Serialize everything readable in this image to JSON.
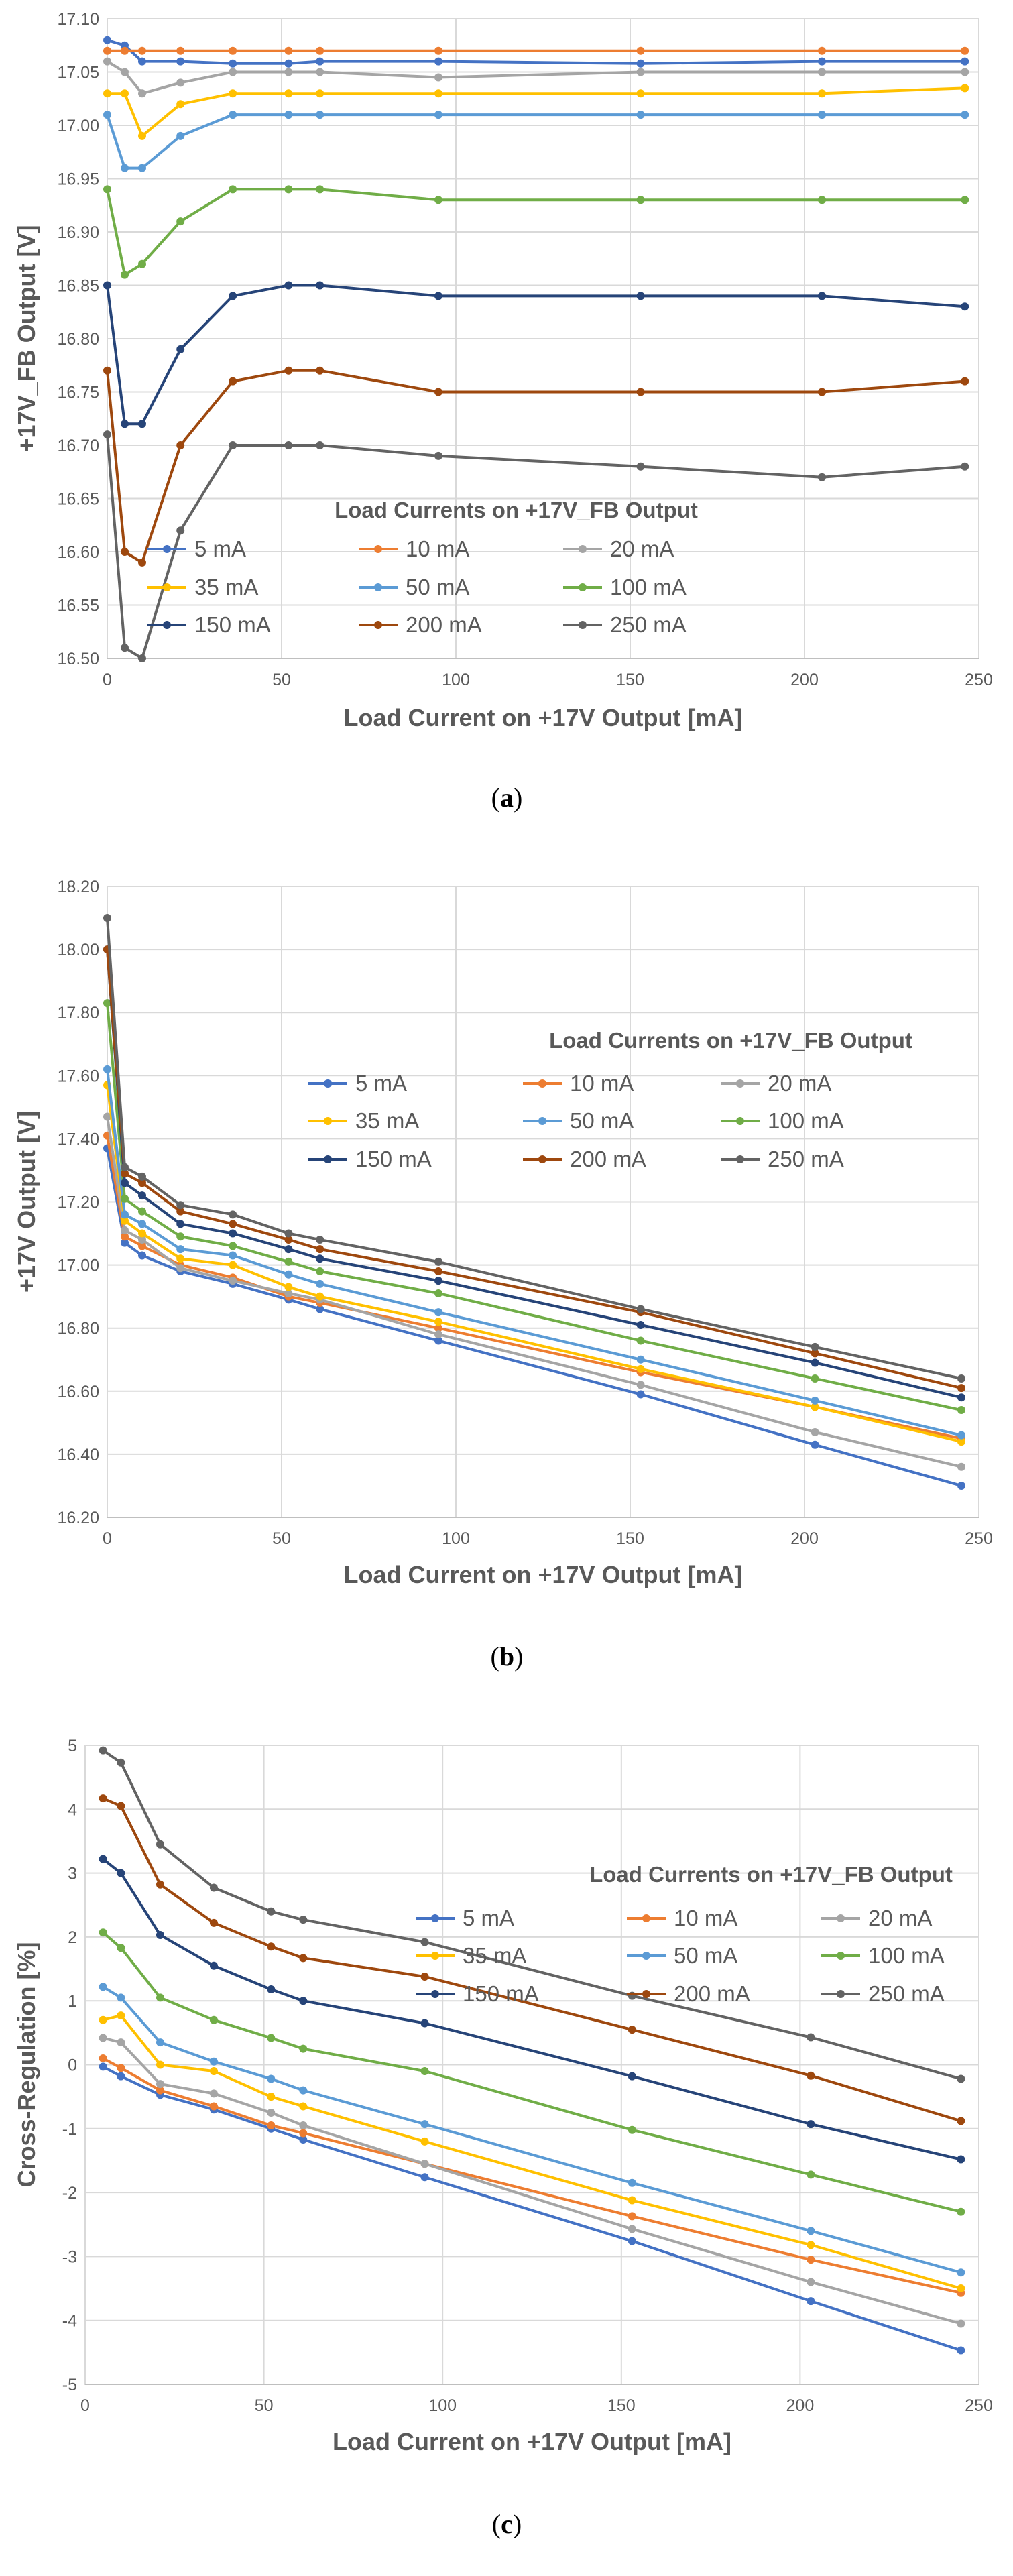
{
  "colors": [
    "#4472C4",
    "#ED7D31",
    "#A5A5A5",
    "#FFC000",
    "#5B9BD5",
    "#70AD47",
    "#264478",
    "#9E480E",
    "#636363"
  ],
  "chart_data": [
    {
      "type": "line",
      "caption": "a",
      "xlabel": "Load Current on +17V Output [mA]",
      "ylabel": "+17V_FB Output [V]",
      "xlim": [
        0,
        250
      ],
      "ylim": [
        16.5,
        17.1
      ],
      "xticks": [
        "0",
        "50",
        "100",
        "150",
        "200",
        "250"
      ],
      "yticks": [
        "16.50",
        "16.55",
        "16.60",
        "16.65",
        "16.70",
        "16.75",
        "16.80",
        "16.85",
        "16.90",
        "16.95",
        "17.00",
        "17.05",
        "17.10"
      ],
      "legend_title": "Load Currents on +17V_FB Output",
      "legend_position": "center",
      "x": [
        0,
        5,
        10,
        21,
        36,
        52,
        61,
        95,
        153,
        205,
        246
      ],
      "series": [
        {
          "name": "5 mA",
          "values": [
            17.08,
            17.075,
            17.06,
            17.06,
            17.058,
            17.058,
            17.06,
            17.06,
            17.058,
            17.06,
            17.06
          ]
        },
        {
          "name": "10 mA",
          "values": [
            17.07,
            17.07,
            17.07,
            17.07,
            17.07,
            17.07,
            17.07,
            17.07,
            17.07,
            17.07,
            17.07
          ]
        },
        {
          "name": "20 mA",
          "values": [
            17.06,
            17.05,
            17.03,
            17.04,
            17.05,
            17.05,
            17.05,
            17.045,
            17.05,
            17.05,
            17.05
          ]
        },
        {
          "name": "35 mA",
          "values": [
            17.03,
            17.03,
            16.99,
            17.02,
            17.03,
            17.03,
            17.03,
            17.03,
            17.03,
            17.03,
            17.035
          ]
        },
        {
          "name": "50 mA",
          "values": [
            17.01,
            16.96,
            16.96,
            16.99,
            17.01,
            17.01,
            17.01,
            17.01,
            17.01,
            17.01,
            17.01
          ]
        },
        {
          "name": "100 mA",
          "values": [
            16.94,
            16.86,
            16.87,
            16.91,
            16.94,
            16.94,
            16.94,
            16.93,
            16.93,
            16.93,
            16.93
          ]
        },
        {
          "name": "150 mA",
          "values": [
            16.85,
            16.72,
            16.72,
            16.79,
            16.84,
            16.85,
            16.85,
            16.84,
            16.84,
            16.84,
            16.83
          ]
        },
        {
          "name": "200 mA",
          "values": [
            16.77,
            16.6,
            16.59,
            16.7,
            16.76,
            16.77,
            16.77,
            16.75,
            16.75,
            16.75,
            16.76
          ]
        },
        {
          "name": "250 mA",
          "values": [
            16.71,
            16.51,
            16.5,
            16.62,
            16.7,
            16.7,
            16.7,
            16.69,
            16.68,
            16.67,
            16.68
          ]
        }
      ]
    },
    {
      "type": "line",
      "caption": "b",
      "xlabel": "Load Current on +17V Output [mA]",
      "ylabel": "+17V Output [V]",
      "xlim": [
        0,
        250
      ],
      "ylim": [
        16.2,
        18.2
      ],
      "xticks": [
        "0",
        "50",
        "100",
        "150",
        "200",
        "250"
      ],
      "yticks": [
        "16.20",
        "16.40",
        "16.60",
        "16.80",
        "17.00",
        "17.20",
        "17.40",
        "17.60",
        "17.80",
        "18.00",
        "18.20"
      ],
      "legend_title": "Load Currents on +17V_FB Output",
      "legend_position": "center-right",
      "x": [
        0,
        5,
        10,
        21,
        36,
        52,
        61,
        95,
        153,
        203,
        245
      ],
      "series": [
        {
          "name": "5 mA",
          "values": [
            17.37,
            17.07,
            17.03,
            16.98,
            16.94,
            16.89,
            16.86,
            16.76,
            16.59,
            16.43,
            16.3
          ]
        },
        {
          "name": "10 mA",
          "values": [
            17.41,
            17.09,
            17.06,
            17.0,
            16.96,
            16.9,
            16.88,
            16.8,
            16.66,
            16.55,
            16.45
          ]
        },
        {
          "name": "20 mA",
          "values": [
            17.47,
            17.11,
            17.08,
            16.99,
            16.95,
            16.91,
            16.89,
            16.78,
            16.62,
            16.47,
            16.36
          ]
        },
        {
          "name": "35 mA",
          "values": [
            17.57,
            17.14,
            17.1,
            17.02,
            17.0,
            16.93,
            16.9,
            16.82,
            16.67,
            16.55,
            16.44
          ]
        },
        {
          "name": "50 mA",
          "values": [
            17.62,
            17.16,
            17.13,
            17.05,
            17.03,
            16.97,
            16.94,
            16.85,
            16.7,
            16.57,
            16.46
          ]
        },
        {
          "name": "100 mA",
          "values": [
            17.83,
            17.21,
            17.17,
            17.09,
            17.06,
            17.01,
            16.98,
            16.91,
            16.76,
            16.64,
            16.54
          ]
        },
        {
          "name": "150 mA",
          "values": [
            18.0,
            17.26,
            17.22,
            17.13,
            17.1,
            17.05,
            17.02,
            16.95,
            16.81,
            16.69,
            16.58
          ]
        },
        {
          "name": "200 mA",
          "values": [
            18.0,
            17.29,
            17.26,
            17.17,
            17.13,
            17.08,
            17.05,
            16.98,
            16.85,
            16.72,
            16.61
          ]
        },
        {
          "name": "250 mA",
          "values": [
            18.1,
            17.31,
            17.28,
            17.19,
            17.16,
            17.1,
            17.08,
            17.01,
            16.86,
            16.74,
            16.64
          ]
        }
      ]
    },
    {
      "type": "line",
      "caption": "c",
      "xlabel": "Load Current on +17V Output [mA]",
      "ylabel": "Cross-Regulation [%]",
      "xlim": [
        0,
        250
      ],
      "ylim": [
        -5,
        5
      ],
      "xticks": [
        "0",
        "50",
        "100",
        "150",
        "200",
        "250"
      ],
      "yticks": [
        "-5",
        "-4",
        "-3",
        "-2",
        "-1",
        "0",
        "1",
        "2",
        "3",
        "4",
        "5"
      ],
      "legend_title": "Load Currents on +17V_FB Output",
      "legend_position": "top-right",
      "x": [
        5,
        10,
        21,
        36,
        52,
        61,
        95,
        153,
        203,
        245
      ],
      "series": [
        {
          "name": "5 mA",
          "values": [
            -0.03,
            -0.18,
            -0.47,
            -0.7,
            -1.0,
            -1.17,
            -1.76,
            -2.76,
            -3.7,
            -4.47
          ]
        },
        {
          "name": "10 mA",
          "values": [
            0.1,
            -0.05,
            -0.4,
            -0.65,
            -0.95,
            -1.07,
            -1.55,
            -2.37,
            -3.05,
            -3.57
          ]
        },
        {
          "name": "20 mA",
          "values": [
            0.42,
            0.35,
            -0.3,
            -0.45,
            -0.75,
            -0.95,
            -1.55,
            -2.57,
            -3.4,
            -4.05
          ]
        },
        {
          "name": "35 mA",
          "values": [
            0.7,
            0.77,
            0.0,
            -0.1,
            -0.5,
            -0.65,
            -1.2,
            -2.12,
            -2.82,
            -3.5
          ]
        },
        {
          "name": "50 mA",
          "values": [
            1.22,
            1.05,
            0.35,
            0.05,
            -0.22,
            -0.4,
            -0.93,
            -1.85,
            -2.6,
            -3.25
          ]
        },
        {
          "name": "100 mA",
          "values": [
            2.07,
            1.83,
            1.05,
            0.7,
            0.42,
            0.25,
            -0.1,
            -1.02,
            -1.72,
            -2.3
          ]
        },
        {
          "name": "150 mA",
          "values": [
            3.22,
            3.0,
            2.03,
            1.55,
            1.18,
            1.0,
            0.65,
            -0.18,
            -0.93,
            -1.48
          ]
        },
        {
          "name": "200 mA",
          "values": [
            4.17,
            4.05,
            2.82,
            2.22,
            1.85,
            1.67,
            1.38,
            0.55,
            -0.17,
            -0.88
          ]
        },
        {
          "name": "250 mA",
          "values": [
            4.92,
            4.73,
            3.45,
            2.77,
            2.4,
            2.27,
            1.92,
            1.08,
            0.43,
            -0.22
          ]
        }
      ]
    }
  ]
}
